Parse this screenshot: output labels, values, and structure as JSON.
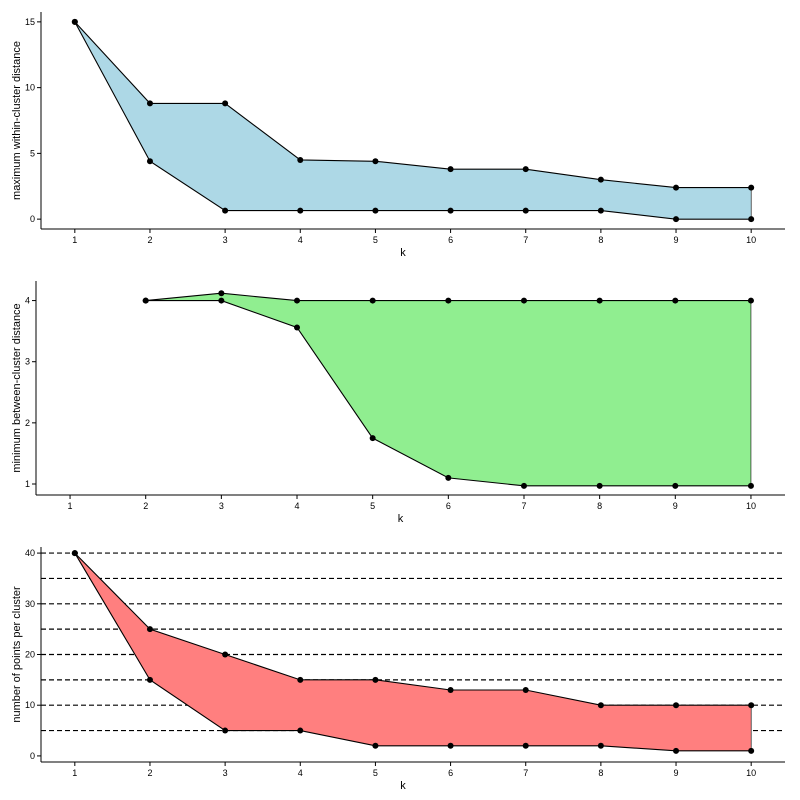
{
  "chart_data": [
    {
      "type": "area",
      "xlabel": "k",
      "ylabel": "maximum within-cluster distance",
      "fill_color": "#add8e6",
      "x": [
        1,
        2,
        3,
        4,
        5,
        6,
        7,
        8,
        9,
        10
      ],
      "x_ticks": [
        "1",
        "2",
        "3",
        "4",
        "5",
        "6",
        "7",
        "8",
        "9",
        "10"
      ],
      "y_ticks": [
        "0",
        "5",
        "10",
        "15"
      ],
      "xlim": [
        0.55,
        10.45
      ],
      "ylim": [
        -0.75,
        15.75
      ],
      "grid": false,
      "series": [
        {
          "values": [
            15,
            8.8,
            8.8,
            4.5,
            4.4,
            3.8,
            3.8,
            3.0,
            2.4,
            2.4
          ]
        },
        {
          "values": [
            15,
            4.4,
            0.65,
            0.65,
            0.65,
            0.65,
            0.65,
            0.65,
            0.0,
            0.0
          ]
        }
      ]
    },
    {
      "type": "area",
      "xlabel": "k",
      "ylabel": "minimum between-cluster distance",
      "fill_color": "#90ee90",
      "x": [
        2,
        3,
        4,
        5,
        6,
        7,
        8,
        9,
        10
      ],
      "x_ticks": [
        "1",
        "2",
        "3",
        "4",
        "5",
        "6",
        "7",
        "8",
        "9",
        "10"
      ],
      "y_ticks": [
        "1",
        "2",
        "3",
        "4"
      ],
      "xlim": [
        0.55,
        10.45
      ],
      "ylim": [
        0.82,
        4.32
      ],
      "grid": false,
      "series": [
        {
          "values": [
            4.0,
            4.12,
            4.0,
            4.0,
            4.0,
            4.0,
            4.0,
            4.0,
            4.0
          ]
        },
        {
          "values": [
            4.0,
            4.0,
            3.56,
            1.75,
            1.1,
            0.97,
            0.97,
            0.97,
            0.97
          ]
        }
      ]
    },
    {
      "type": "area",
      "xlabel": "k",
      "ylabel": "number of points per cluster",
      "fill_color": "#ff7f7f",
      "x": [
        1,
        2,
        3,
        4,
        5,
        6,
        7,
        8,
        9,
        10
      ],
      "x_ticks": [
        "1",
        "2",
        "3",
        "4",
        "5",
        "6",
        "7",
        "8",
        "9",
        "10"
      ],
      "y_ticks": [
        "0",
        "10",
        "20",
        "30",
        "40"
      ],
      "xlim": [
        0.55,
        10.45
      ],
      "ylim": [
        -1.2,
        41.2
      ],
      "grid": false,
      "reference_lines": [
        5,
        10,
        15,
        20,
        25,
        30,
        35,
        40
      ],
      "series": [
        {
          "values": [
            40,
            25,
            20,
            15,
            15,
            13,
            13,
            10,
            10,
            10
          ]
        },
        {
          "values": [
            40,
            15,
            5,
            5,
            2,
            2,
            2,
            2,
            1,
            1
          ]
        }
      ]
    }
  ]
}
